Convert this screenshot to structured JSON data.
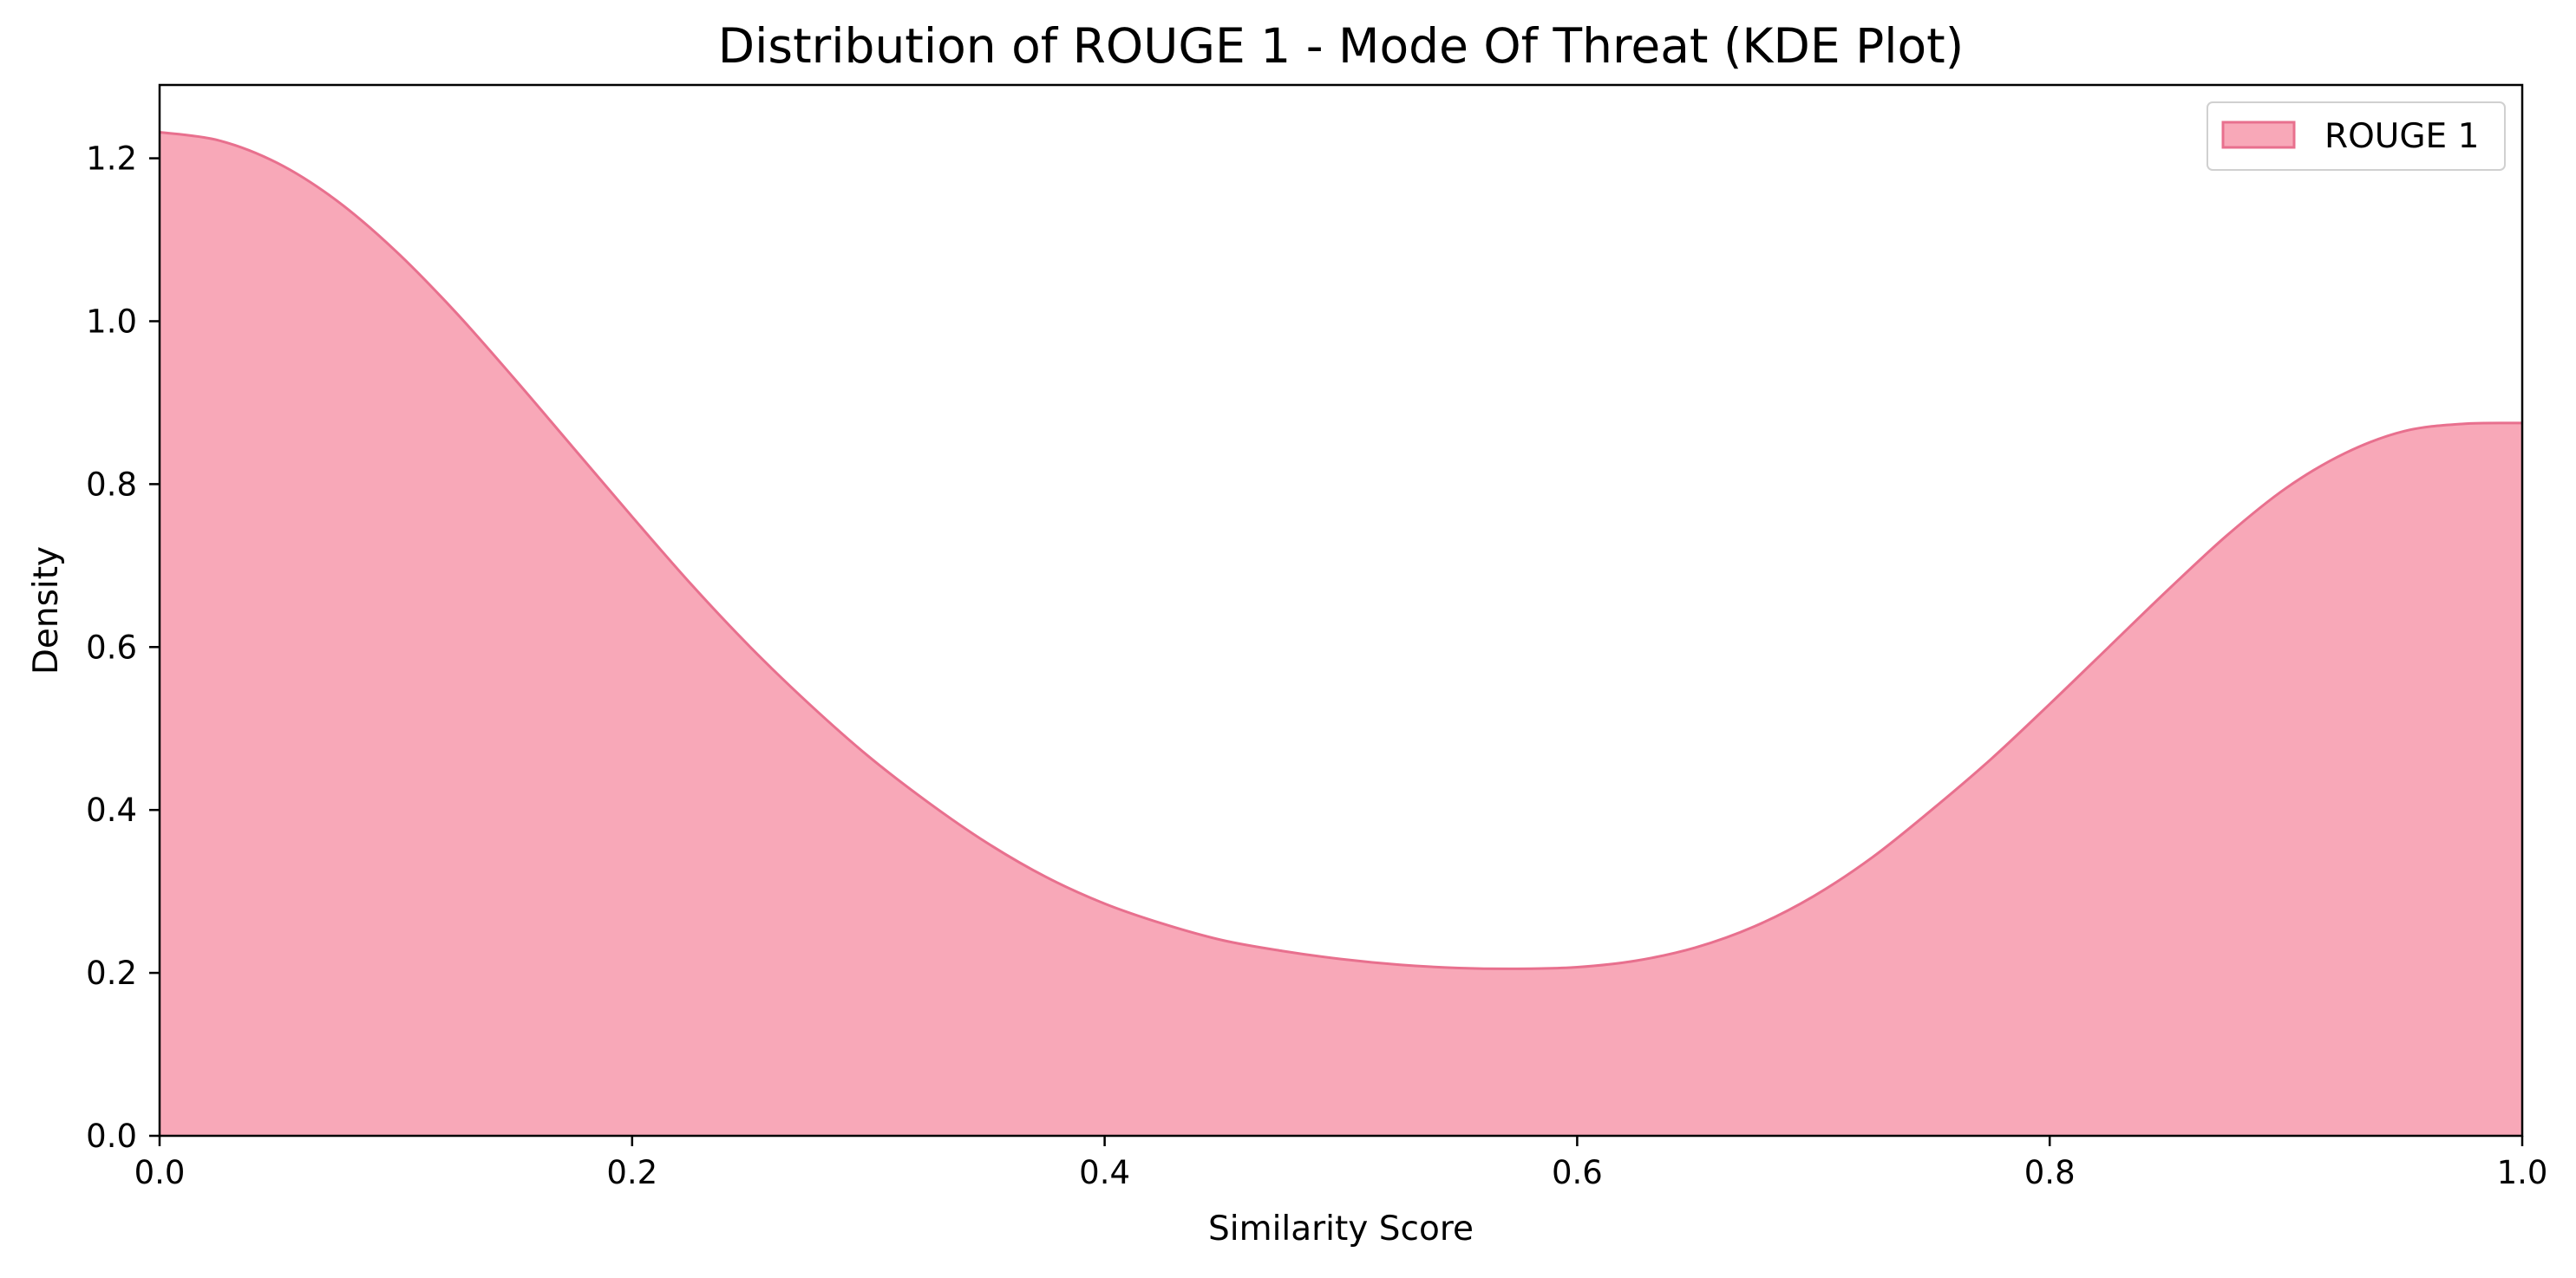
{
  "chart_data": {
    "type": "area",
    "title": "Distribution of ROUGE 1 - Mode Of Threat (KDE Plot)",
    "xlabel": "Similarity Score",
    "ylabel": "Density",
    "xlim": [
      0,
      1
    ],
    "ylim": [
      0,
      1.29
    ],
    "x_ticks": [
      0.0,
      0.2,
      0.4,
      0.6,
      0.8,
      1.0
    ],
    "x_tick_labels": [
      "0.0",
      "0.2",
      "0.4",
      "0.6",
      "0.8",
      "1.0"
    ],
    "y_ticks": [
      0.0,
      0.2,
      0.4,
      0.6,
      0.8,
      1.0,
      1.2
    ],
    "y_tick_labels": [
      "0.0",
      "0.2",
      "0.4",
      "0.6",
      "0.8",
      "1.0",
      "1.2"
    ],
    "grid": false,
    "legend": {
      "position": "top-right"
    },
    "series": [
      {
        "name": "ROUGE 1",
        "fill_color": "#f8a8b8",
        "line_color": "#e8708e",
        "x": [
          0.0,
          0.025,
          0.05,
          0.075,
          0.1,
          0.125,
          0.15,
          0.175,
          0.2,
          0.225,
          0.25,
          0.275,
          0.3,
          0.325,
          0.35,
          0.375,
          0.4,
          0.425,
          0.45,
          0.475,
          0.5,
          0.525,
          0.55,
          0.575,
          0.6,
          0.625,
          0.65,
          0.675,
          0.7,
          0.725,
          0.75,
          0.775,
          0.8,
          0.825,
          0.85,
          0.875,
          0.9,
          0.925,
          0.95,
          0.975,
          1.0
        ],
        "y": [
          1.232,
          1.222,
          1.194,
          1.148,
          1.086,
          1.012,
          0.93,
          0.845,
          0.76,
          0.677,
          0.6,
          0.53,
          0.466,
          0.41,
          0.36,
          0.318,
          0.285,
          0.26,
          0.24,
          0.227,
          0.217,
          0.21,
          0.206,
          0.205,
          0.207,
          0.215,
          0.231,
          0.257,
          0.294,
          0.342,
          0.4,
          0.462,
          0.53,
          0.6,
          0.67,
          0.737,
          0.795,
          0.838,
          0.865,
          0.874,
          0.875
        ]
      }
    ]
  }
}
